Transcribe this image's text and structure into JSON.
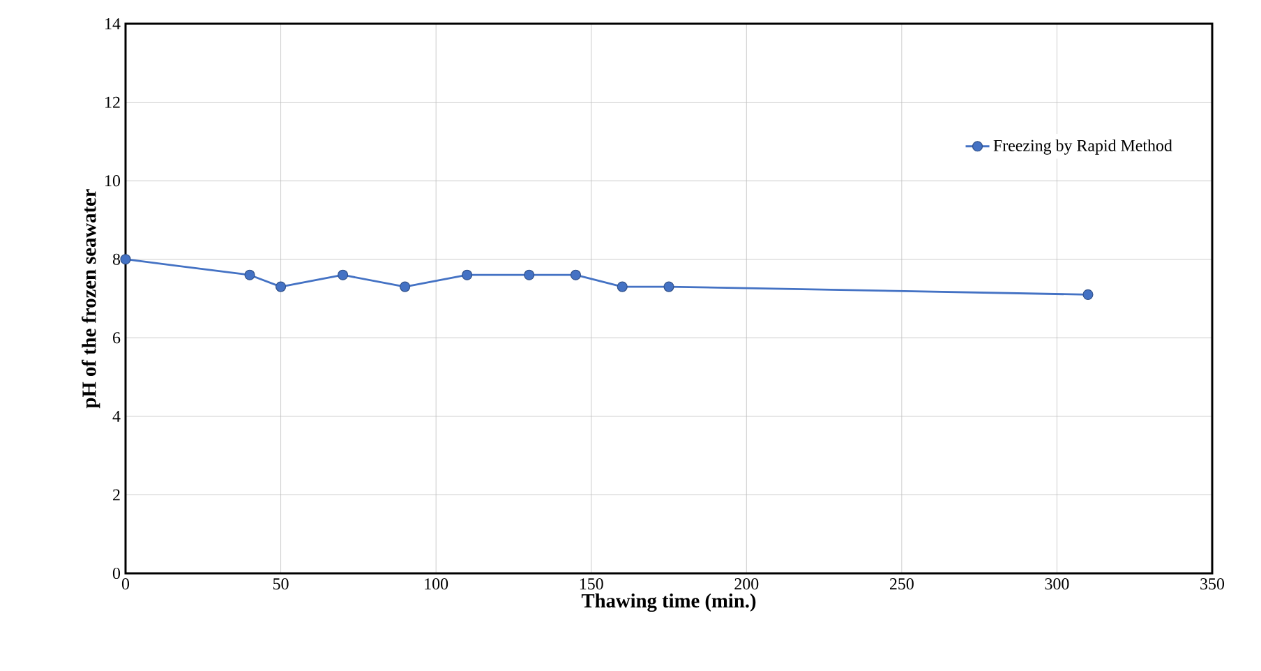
{
  "chart_data": {
    "type": "line",
    "xlabel": "Thawing time (min.)",
    "ylabel": "pH of the frozen seawater",
    "x": [
      0,
      40,
      50,
      70,
      90,
      110,
      130,
      145,
      160,
      175,
      310
    ],
    "series": [
      {
        "name": "Freezing by Rapid Method",
        "color": "#4472c4",
        "values": [
          8.0,
          7.6,
          7.3,
          7.6,
          7.3,
          7.6,
          7.6,
          7.6,
          7.3,
          7.3,
          7.1
        ]
      }
    ],
    "xlim": [
      0,
      350
    ],
    "xticks": [
      0,
      50,
      100,
      150,
      200,
      250,
      300,
      350
    ],
    "ylim": [
      0,
      14
    ],
    "yticks": [
      0,
      2,
      4,
      6,
      8,
      10,
      12,
      14
    ],
    "grid": true,
    "legend": "top right",
    "marker": "circle",
    "line_style": "solid"
  }
}
